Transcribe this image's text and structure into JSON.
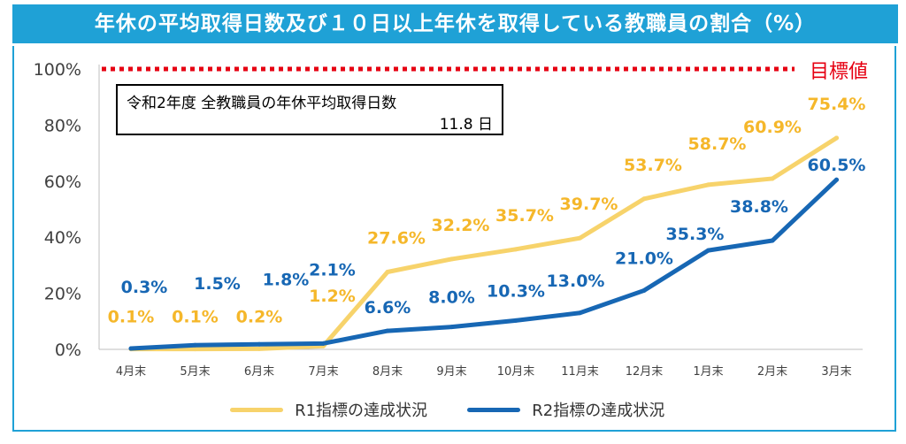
{
  "title": "年休の平均取得日数及び１０日以上年休を取得している教職員の割合（%）",
  "info_box": {
    "line1": "令和2年度  全教職員の年休平均取得日数",
    "line2": "11.8 日"
  },
  "target": {
    "label": "目標値",
    "value": 100,
    "color": "#e60012"
  },
  "chart_data": {
    "type": "line",
    "categories": [
      "4月末",
      "5月末",
      "6月末",
      "7月末",
      "8月末",
      "9月末",
      "10月末",
      "11月末",
      "12月末",
      "1月末",
      "2月末",
      "3月末"
    ],
    "y_ticks": [
      "0%",
      "20%",
      "40%",
      "60%",
      "80%",
      "100%"
    ],
    "ylim": [
      0,
      100
    ],
    "grid": false,
    "legend_position": "bottom",
    "series": [
      {
        "name": "R1指標の達成状況",
        "color": "#f7d36b",
        "values": [
          0.1,
          0.1,
          0.2,
          1.2,
          27.6,
          32.2,
          35.7,
          39.7,
          53.7,
          58.7,
          60.9,
          75.4
        ],
        "labels": [
          "0.1%",
          "0.1%",
          "0.2%",
          "1.2%",
          "27.6%",
          "32.2%",
          "35.7%",
          "39.7%",
          "53.7%",
          "58.7%",
          "60.9%",
          "75.4%"
        ],
        "label_color": "#f5b72a"
      },
      {
        "name": "R2指標の達成状況",
        "color": "#1767b4",
        "values": [
          0.3,
          1.5,
          1.8,
          2.1,
          6.6,
          8.0,
          10.3,
          13.0,
          21.0,
          35.3,
          38.8,
          60.5
        ],
        "labels": [
          "0.3%",
          "1.5%",
          "1.8%",
          "2.1%",
          "6.6%",
          "8.0%",
          "10.3%",
          "13.0%",
          "21.0%",
          "35.3%",
          "38.8%",
          "60.5%"
        ],
        "label_color": "#1767b4"
      }
    ]
  }
}
